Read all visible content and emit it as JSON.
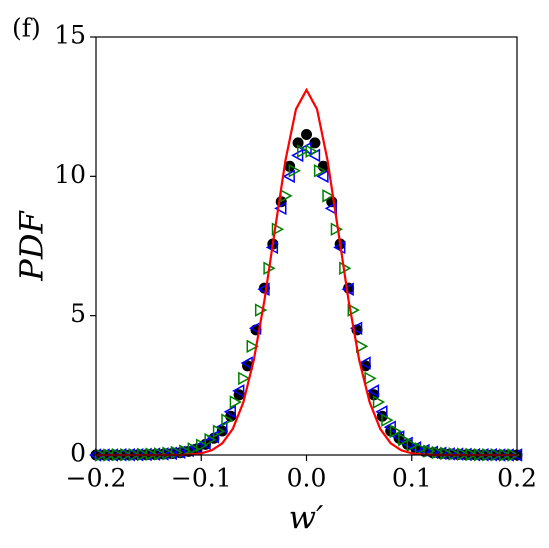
{
  "chart_data": {
    "type": "scatter",
    "title": "(f)",
    "xlabel": "w′",
    "ylabel": "PDF",
    "xlim": [
      -0.2,
      0.2
    ],
    "ylim": [
      0,
      15
    ],
    "xticks": [
      {
        "value": -0.2,
        "label": "−0.2"
      },
      {
        "value": -0.1,
        "label": "−0.1"
      },
      {
        "value": 0,
        "label": "0.0"
      },
      {
        "value": 0.1,
        "label": "0.1"
      },
      {
        "value": 0.2,
        "label": "0.2"
      }
    ],
    "yticks": [
      0,
      5,
      10,
      15
    ],
    "series": [
      {
        "marker": "circle",
        "color": "#000000",
        "x": [
          -0.2,
          -0.192,
          -0.184,
          -0.176,
          -0.168,
          -0.16,
          -0.152,
          -0.144,
          -0.136,
          -0.128,
          -0.12,
          -0.112,
          -0.104,
          -0.096,
          -0.088,
          -0.08,
          -0.072,
          -0.064,
          -0.056,
          -0.048,
          -0.04,
          -0.032,
          -0.024,
          -0.016,
          -0.008,
          0,
          0.008,
          0.016,
          0.024,
          0.032,
          0.04,
          0.048,
          0.056,
          0.064,
          0.072,
          0.08,
          0.088,
          0.096,
          0.104,
          0.112,
          0.12,
          0.128,
          0.136,
          0.144,
          0.152,
          0.16,
          0.168,
          0.176,
          0.184,
          0.192,
          0.2
        ],
        "values": [
          0,
          0,
          0,
          0,
          0,
          0.01,
          0.01,
          0.02,
          0.03,
          0.05,
          0.08,
          0.13,
          0.22,
          0.38,
          0.6,
          0.86,
          1.39,
          2.16,
          3.2,
          4.49,
          5.99,
          7.57,
          9.09,
          10.36,
          11.2,
          11.5,
          11.2,
          10.36,
          9.09,
          7.57,
          5.99,
          4.49,
          3.2,
          2.16,
          1.39,
          0.86,
          0.6,
          0.38,
          0.22,
          0.13,
          0.08,
          0.05,
          0.03,
          0.02,
          0.01,
          0.01,
          0,
          0,
          0,
          0,
          0
        ]
      },
      {
        "marker": "triangle-left",
        "color": "#0000ff",
        "x": [
          -0.2,
          -0.192,
          -0.184,
          -0.176,
          -0.168,
          -0.16,
          -0.152,
          -0.144,
          -0.136,
          -0.128,
          -0.12,
          -0.112,
          -0.104,
          -0.096,
          -0.088,
          -0.08,
          -0.072,
          -0.064,
          -0.056,
          -0.048,
          -0.04,
          -0.032,
          -0.024,
          -0.016,
          -0.008,
          0,
          0.008,
          0.016,
          0.024,
          0.032,
          0.04,
          0.048,
          0.056,
          0.064,
          0.072,
          0.08,
          0.088,
          0.096,
          0.104,
          0.112,
          0.12,
          0.128,
          0.136,
          0.144,
          0.152,
          0.16,
          0.168,
          0.176,
          0.184,
          0.192,
          0.2
        ],
        "values": [
          0,
          0,
          0,
          0.01,
          0.01,
          0.01,
          0.02,
          0.03,
          0.04,
          0.06,
          0.1,
          0.16,
          0.26,
          0.42,
          0.65,
          1.0,
          1.55,
          2.3,
          3.3,
          4.55,
          5.95,
          7.45,
          8.85,
          10.0,
          10.75,
          11.0,
          10.75,
          10.0,
          8.85,
          7.45,
          5.95,
          4.55,
          3.3,
          2.3,
          1.55,
          1.0,
          0.65,
          0.42,
          0.26,
          0.16,
          0.1,
          0.06,
          0.04,
          0.03,
          0.02,
          0.01,
          0.01,
          0.01,
          0,
          0,
          0
        ]
      },
      {
        "marker": "triangle-right",
        "color": "#008000",
        "x": [
          -0.196,
          -0.188,
          -0.18,
          -0.172,
          -0.164,
          -0.156,
          -0.148,
          -0.14,
          -0.132,
          -0.124,
          -0.116,
          -0.108,
          -0.1,
          -0.092,
          -0.084,
          -0.076,
          -0.068,
          -0.06,
          -0.052,
          -0.044,
          -0.036,
          -0.028,
          -0.02,
          -0.012,
          -0.004,
          0.004,
          0.012,
          0.02,
          0.028,
          0.036,
          0.044,
          0.052,
          0.06,
          0.068,
          0.076,
          0.084,
          0.092,
          0.1,
          0.108,
          0.116,
          0.124,
          0.132,
          0.14,
          0.148,
          0.156,
          0.164,
          0.172,
          0.18,
          0.188,
          0.196
        ],
        "values": [
          0,
          0,
          0.01,
          0.01,
          0.01,
          0.02,
          0.03,
          0.04,
          0.06,
          0.09,
          0.14,
          0.22,
          0.35,
          0.55,
          0.85,
          1.25,
          1.9,
          2.75,
          3.9,
          5.2,
          6.7,
          8.1,
          9.3,
          10.2,
          10.9,
          10.9,
          10.2,
          9.3,
          8.1,
          6.7,
          5.2,
          3.9,
          2.75,
          1.9,
          1.25,
          0.85,
          0.55,
          0.35,
          0.22,
          0.14,
          0.09,
          0.06,
          0.04,
          0.03,
          0.02,
          0.01,
          0.01,
          0.01,
          0,
          0
        ]
      },
      {
        "marker": "line",
        "color": "#ff0000",
        "x": [
          -0.2,
          -0.19,
          -0.18,
          -0.17,
          -0.16,
          -0.15,
          -0.14,
          -0.13,
          -0.12,
          -0.11,
          -0.1,
          -0.09,
          -0.08,
          -0.07,
          -0.06,
          -0.05,
          -0.04,
          -0.03,
          -0.02,
          -0.01,
          0,
          0.01,
          0.02,
          0.03,
          0.04,
          0.05,
          0.06,
          0.07,
          0.08,
          0.09,
          0.1,
          0.11,
          0.12,
          0.13,
          0.14,
          0.15,
          0.16,
          0.17,
          0.18,
          0.19,
          0.2
        ],
        "values": [
          0,
          0,
          0,
          0,
          0,
          0,
          0,
          0,
          0,
          0.02,
          0.06,
          0.17,
          0.42,
          0.94,
          1.89,
          3.42,
          5.54,
          8.08,
          10.57,
          12.41,
          13.1,
          12.41,
          10.57,
          8.08,
          5.54,
          3.42,
          1.89,
          0.94,
          0.42,
          0.17,
          0.06,
          0.02,
          0,
          0,
          0,
          0,
          0,
          0,
          0,
          0,
          0
        ]
      }
    ]
  }
}
